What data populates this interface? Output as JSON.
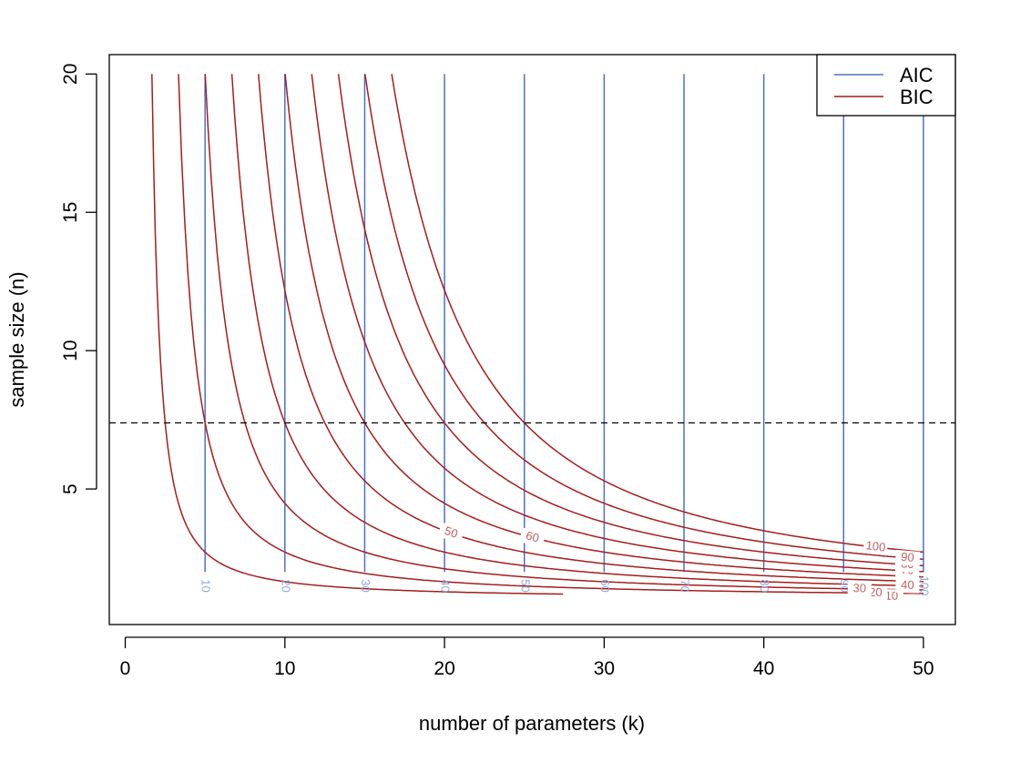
{
  "chart_data": {
    "type": "line",
    "title": "",
    "xlabel": "number of parameters (k)",
    "ylabel": "sample size (n)",
    "xlim": [
      -1,
      52
    ],
    "ylim": [
      0.1,
      20.7
    ],
    "xticks": [
      0,
      10,
      20,
      30,
      40,
      50
    ],
    "yticks": [
      5,
      10,
      15,
      20
    ],
    "grid": false,
    "legend": {
      "position": "top-right",
      "entries": [
        {
          "name": "AIC",
          "color": "#4a72c4"
        },
        {
          "name": "BIC",
          "color": "#a61c1c"
        }
      ]
    },
    "reference_line": {
      "style": "dashed",
      "y": 7.39,
      "color": "#000000"
    },
    "series": [
      {
        "name": "AIC",
        "color": "#4a72c4",
        "label_color": "#8ea7d8",
        "contour_levels": [
          10,
          20,
          30,
          40,
          50,
          60,
          70,
          80,
          90,
          100
        ],
        "x_positions": [
          5,
          10,
          15,
          20,
          25,
          30,
          35,
          40,
          45,
          50
        ],
        "y_range": [
          2,
          20
        ],
        "label_y": 1.5
      },
      {
        "name": "BIC",
        "color": "#a61c1c",
        "label_color": "#c06060",
        "formula": "k * ln(n) = level / 2",
        "contour_levels": [
          10,
          20,
          30,
          40,
          50,
          60,
          70,
          80,
          90,
          100
        ],
        "y_range": [
          1.2,
          20
        ],
        "x_max": 50,
        "labels": [
          {
            "text": "10",
            "x": 48.0
          },
          {
            "text": "20",
            "x": 47.0
          },
          {
            "text": "30",
            "x": 46.0
          },
          {
            "text": "40",
            "x": 49.0
          },
          {
            "text": "50",
            "x": 20.4
          },
          {
            "text": "60",
            "x": 25.5
          },
          {
            "text": "70",
            "x": 49.0
          },
          {
            "text": "80",
            "x": 49.0
          },
          {
            "text": "90",
            "x": 49.0
          },
          {
            "text": "100",
            "x": 47.0
          }
        ]
      }
    ]
  }
}
